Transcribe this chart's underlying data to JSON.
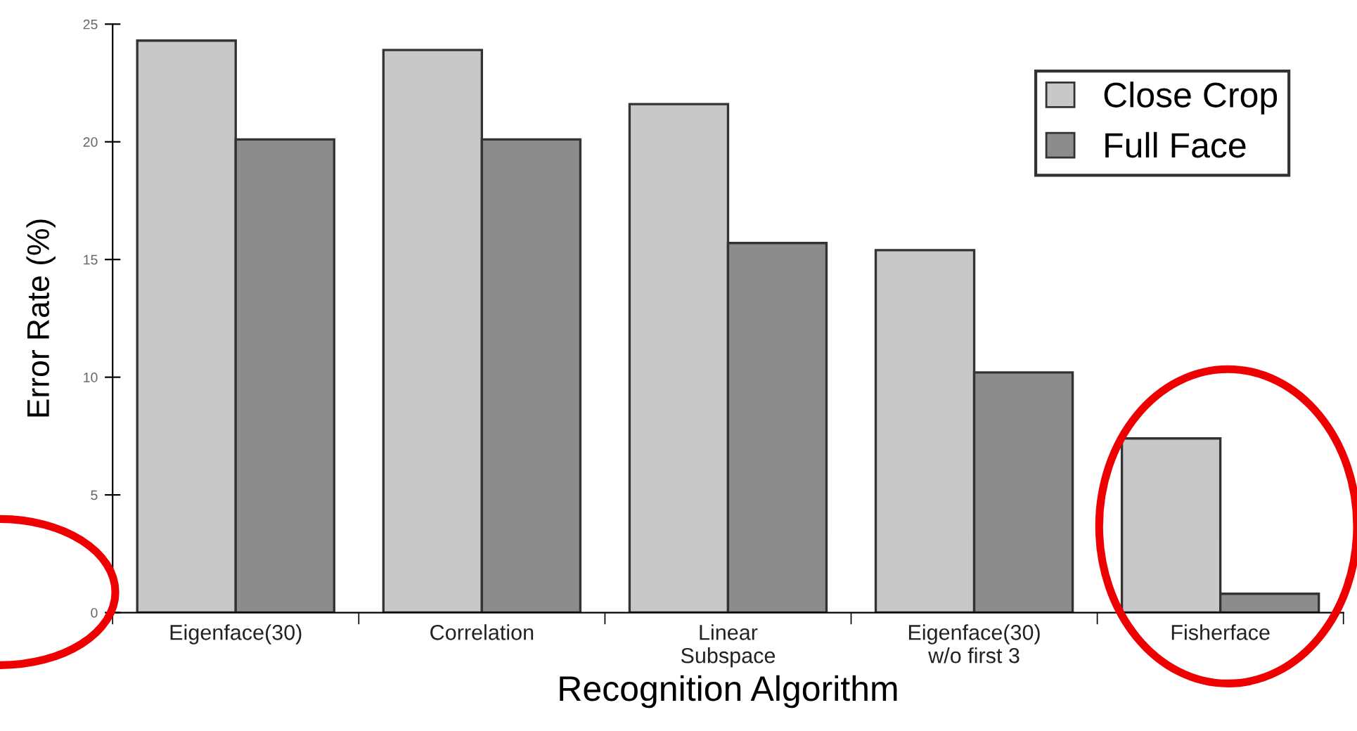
{
  "chart_data": {
    "type": "bar",
    "xlabel": "Recognition Algorithm",
    "ylabel": "Error Rate (%)",
    "categories": [
      "Eigenface(30)",
      "Correlation",
      "Linear\nSubspace",
      "Eigenface(30)\nw/o first 3",
      "Fisherface"
    ],
    "series": [
      {
        "name": "Close Crop",
        "color": "#c8c8c8",
        "values": [
          24.3,
          23.9,
          21.6,
          15.4,
          7.4
        ]
      },
      {
        "name": "Full Face",
        "color": "#8c8c8c",
        "values": [
          20.1,
          20.1,
          15.7,
          10.2,
          0.8
        ]
      }
    ],
    "ylim": [
      0,
      25
    ],
    "yticks": [
      0,
      5,
      10,
      15,
      20,
      25
    ],
    "grid": false,
    "legend": "top right"
  }
}
